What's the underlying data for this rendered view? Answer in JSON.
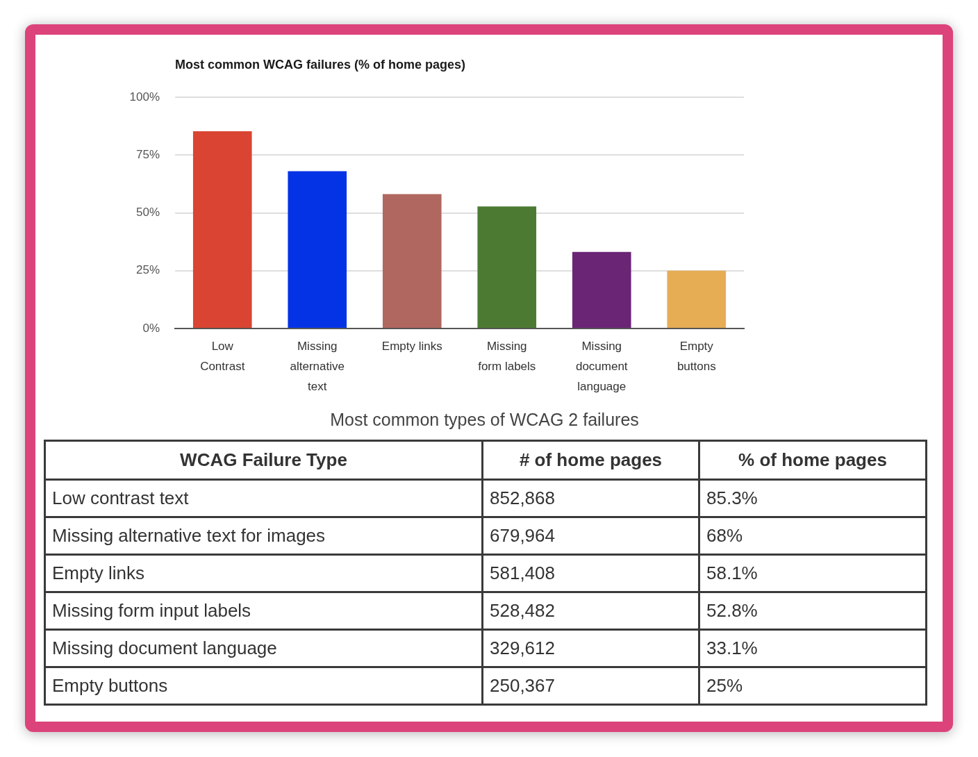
{
  "chart_data": [
    {
      "type": "bar",
      "title": "Most common WCAG failures (% of home pages)",
      "categories": [
        "Low Contrast",
        "Missing alternative text",
        "Empty links",
        "Missing form labels",
        "Missing document language",
        "Empty buttons"
      ],
      "values": [
        85.3,
        68,
        58.1,
        52.8,
        33.1,
        25
      ],
      "colors": [
        "#d94532",
        "#0433e6",
        "#b0675f",
        "#4c7a32",
        "#6a2575",
        "#e6ad55"
      ],
      "ylim": [
        0,
        100
      ],
      "yticks": [
        {
          "value": 0,
          "label": "0%"
        },
        {
          "value": 25,
          "label": "25%"
        },
        {
          "value": 50,
          "label": "50%"
        },
        {
          "value": 75,
          "label": "75%"
        },
        {
          "value": 100,
          "label": "100%"
        }
      ],
      "grid": "y"
    },
    {
      "type": "other",
      "title": "Most common types of WCAG 2 failures",
      "xlabel": "WCAG Failure Type",
      "categories": [
        "Low contrast text",
        "Missing alternative text for images",
        "Empty links",
        "Missing form input labels",
        "Missing document language",
        "Empty buttons"
      ],
      "series": [
        {
          "name": "# of home pages",
          "values": [
            852868,
            679964,
            581408,
            528482,
            329612,
            250367
          ],
          "value_labels": [
            "852,868",
            "679,964",
            "581,408",
            "528,482",
            "329,612",
            "250,367"
          ]
        },
        {
          "name": "% of home pages",
          "values": [
            85.3,
            68,
            58.1,
            52.8,
            33.1,
            25
          ],
          "value_labels": [
            "85.3%",
            "68%",
            "58.1%",
            "52.8%",
            "33.1%",
            "25%"
          ]
        }
      ]
    }
  ]
}
